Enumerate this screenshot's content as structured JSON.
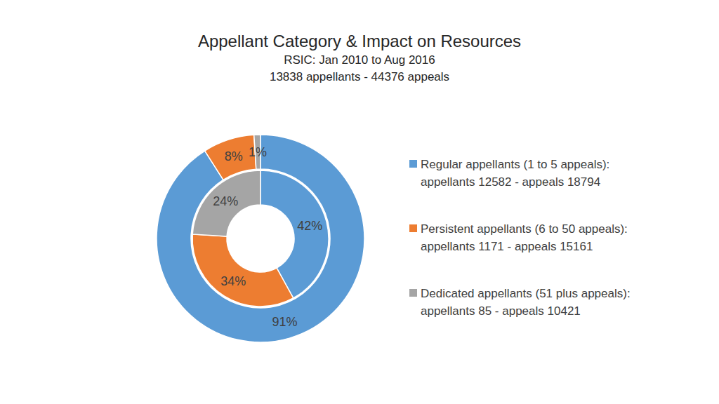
{
  "chart_data": {
    "type": "donut",
    "title": "Appellant Category & Impact on Resources",
    "subtitle": [
      "RSIC: Jan 2010 to Aug 2016",
      "13838 appellants - 44376 appeals"
    ],
    "categories": [
      "Regular appellants (1 to 5 appeals):",
      "Persistent appellants (6 to 50 appeals):",
      "Dedicated appellants (51 plus appeals):"
    ],
    "category_details": [
      "appellants 12582 - appeals 18794",
      "appellants 1171 - appeals 15161",
      "appellants 85 - appeals 10421"
    ],
    "series": [
      {
        "values": [
          91,
          8,
          1
        ],
        "value_labels": [
          "91%",
          "8%",
          "1%"
        ]
      },
      {
        "values": [
          42,
          34,
          24
        ],
        "value_labels": [
          "42%",
          "34%",
          "24%"
        ]
      }
    ],
    "colors": [
      "#5b9bd5",
      "#ed7d31",
      "#a5a5a5"
    ],
    "data_labels": true,
    "legend": "right"
  }
}
